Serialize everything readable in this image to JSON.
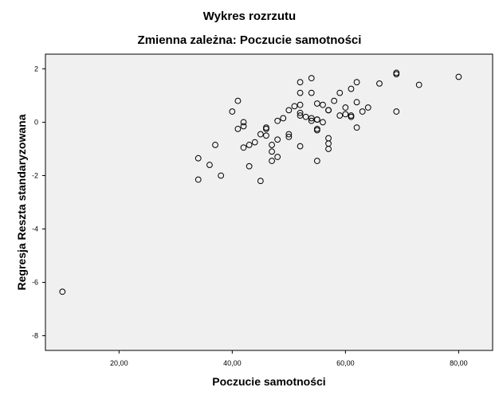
{
  "chart_data": {
    "type": "scatter",
    "title": "Wykres rozrzutu",
    "subtitle": "Zmienna zależna: Poczucie samotności",
    "xlabel": "Poczucie samotności",
    "ylabel": "Regresja Reszta standaryzowana",
    "xlim": [
      7,
      86
    ],
    "ylim": [
      -8.55,
      2.55
    ],
    "xticks": [
      20,
      40,
      60,
      80
    ],
    "xtick_labels": [
      "20,00",
      "40,00",
      "60,00",
      "80,00"
    ],
    "yticks": [
      2,
      0,
      -2,
      -4,
      -6,
      -8
    ],
    "ytick_labels": [
      "2",
      "0",
      "-2",
      "-4",
      "-6",
      "-8"
    ],
    "grid": false,
    "legend": "none",
    "plot_background": "#f0f0f0",
    "marker_color": "#000000",
    "points": [
      {
        "x": 10,
        "y": -6.35
      },
      {
        "x": 34,
        "y": -1.35
      },
      {
        "x": 34,
        "y": -2.15
      },
      {
        "x": 36,
        "y": -1.6
      },
      {
        "x": 37,
        "y": -0.85
      },
      {
        "x": 38,
        "y": -2.0
      },
      {
        "x": 40,
        "y": 0.4
      },
      {
        "x": 41,
        "y": 0.8
      },
      {
        "x": 41,
        "y": -0.25
      },
      {
        "x": 42,
        "y": 0.0
      },
      {
        "x": 42,
        "y": -0.15
      },
      {
        "x": 42,
        "y": -0.95
      },
      {
        "x": 43,
        "y": -0.85
      },
      {
        "x": 43,
        "y": -1.65
      },
      {
        "x": 44,
        "y": -0.75
      },
      {
        "x": 45,
        "y": -0.45
      },
      {
        "x": 45,
        "y": -2.2
      },
      {
        "x": 46,
        "y": -0.2
      },
      {
        "x": 46,
        "y": -0.25
      },
      {
        "x": 46,
        "y": -0.5
      },
      {
        "x": 47,
        "y": -0.85
      },
      {
        "x": 47,
        "y": -1.1
      },
      {
        "x": 47,
        "y": -1.45
      },
      {
        "x": 48,
        "y": 0.05
      },
      {
        "x": 48,
        "y": -0.65
      },
      {
        "x": 48,
        "y": -1.3
      },
      {
        "x": 49,
        "y": 0.15
      },
      {
        "x": 50,
        "y": 0.45
      },
      {
        "x": 50,
        "y": -0.45
      },
      {
        "x": 50,
        "y": -0.55
      },
      {
        "x": 51,
        "y": 0.6
      },
      {
        "x": 52,
        "y": 1.5
      },
      {
        "x": 52,
        "y": 1.1
      },
      {
        "x": 52,
        "y": 0.65
      },
      {
        "x": 52,
        "y": 0.35
      },
      {
        "x": 52,
        "y": 0.25
      },
      {
        "x": 52,
        "y": -0.9
      },
      {
        "x": 53,
        "y": 0.2
      },
      {
        "x": 54,
        "y": 1.65
      },
      {
        "x": 54,
        "y": 1.1
      },
      {
        "x": 54,
        "y": 0.15
      },
      {
        "x": 54,
        "y": 0.05
      },
      {
        "x": 55,
        "y": 0.7
      },
      {
        "x": 55,
        "y": 0.1
      },
      {
        "x": 55,
        "y": 0.1
      },
      {
        "x": 55,
        "y": -0.25
      },
      {
        "x": 55,
        "y": -0.3
      },
      {
        "x": 55,
        "y": -1.45
      },
      {
        "x": 56,
        "y": 0.65
      },
      {
        "x": 56,
        "y": 0.0
      },
      {
        "x": 57,
        "y": 0.45
      },
      {
        "x": 57,
        "y": 0.45
      },
      {
        "x": 57,
        "y": -0.6
      },
      {
        "x": 57,
        "y": -0.8
      },
      {
        "x": 57,
        "y": -1.0
      },
      {
        "x": 58,
        "y": 0.8
      },
      {
        "x": 59,
        "y": 1.1
      },
      {
        "x": 59,
        "y": 0.25
      },
      {
        "x": 60,
        "y": 0.55
      },
      {
        "x": 60,
        "y": 0.3
      },
      {
        "x": 61,
        "y": 1.25
      },
      {
        "x": 61,
        "y": 0.25
      },
      {
        "x": 61,
        "y": 0.2
      },
      {
        "x": 62,
        "y": 1.5
      },
      {
        "x": 62,
        "y": 0.75
      },
      {
        "x": 62,
        "y": -0.2
      },
      {
        "x": 63,
        "y": 0.4
      },
      {
        "x": 64,
        "y": 0.55
      },
      {
        "x": 66,
        "y": 1.45
      },
      {
        "x": 69,
        "y": 1.85
      },
      {
        "x": 69,
        "y": 1.8
      },
      {
        "x": 69,
        "y": 0.4
      },
      {
        "x": 73,
        "y": 1.4
      },
      {
        "x": 80,
        "y": 1.7
      }
    ]
  }
}
